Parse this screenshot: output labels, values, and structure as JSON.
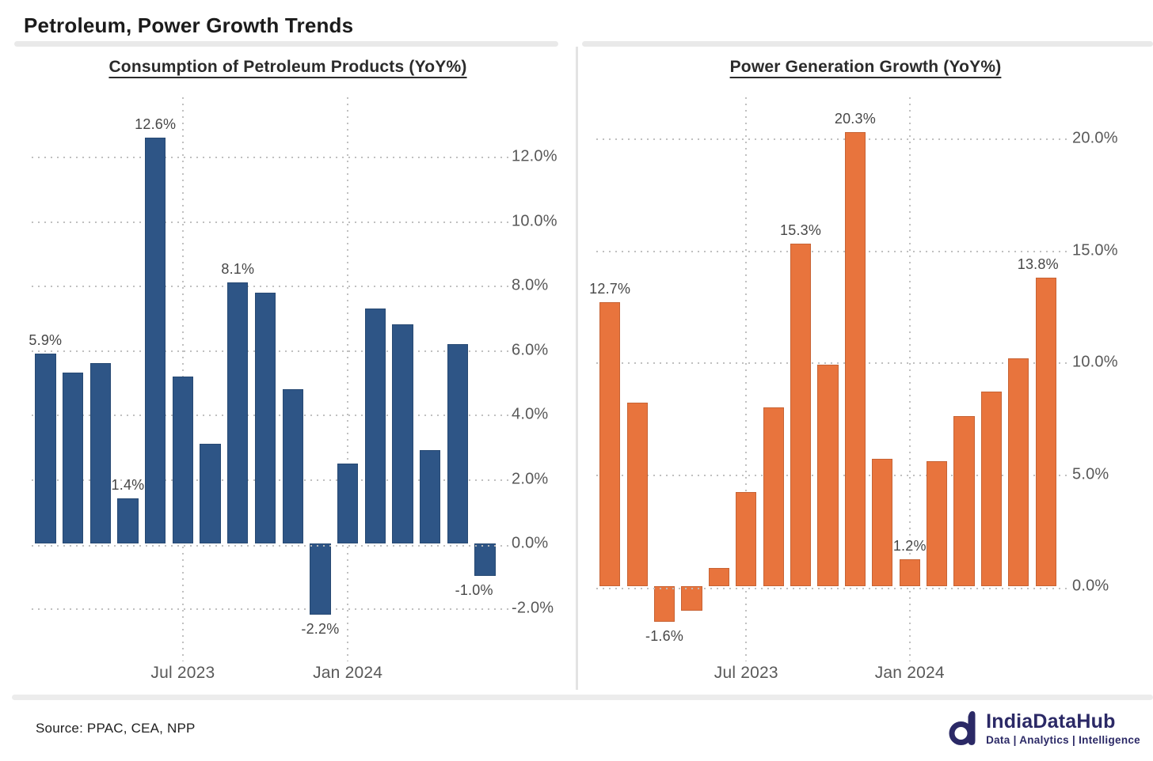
{
  "page": {
    "title": "Petroleum, Power Growth Trends",
    "source": "Source: PPAC, CEA, NPP",
    "logo": {
      "name": "IndiaDataHub",
      "tagline": "Data | Analytics | Intelligence"
    }
  },
  "chart_data": [
    {
      "type": "bar",
      "title": "Consumption of Petroleum Products (YoY%)",
      "bar_color": "#2E5586",
      "grid": "dotted",
      "legend": "none",
      "values": [
        5.9,
        5.3,
        5.6,
        1.4,
        12.6,
        5.2,
        3.1,
        8.1,
        7.8,
        4.8,
        -2.2,
        2.5,
        7.3,
        6.8,
        2.9,
        6.2,
        -1.0
      ],
      "bar_labels": [
        {
          "index": 0,
          "text": "5.9%"
        },
        {
          "index": 3,
          "text": "1.4%"
        },
        {
          "index": 4,
          "text": "12.6%"
        },
        {
          "index": 7,
          "text": "8.1%"
        },
        {
          "index": 10,
          "text": "-2.2%"
        },
        {
          "index": 16,
          "text": "-1.0%",
          "dx": -14
        }
      ],
      "y_ticks": [
        {
          "v": 12,
          "label": "12.0%"
        },
        {
          "v": 10,
          "label": "10.0%"
        },
        {
          "v": 8,
          "label": "8.0%"
        },
        {
          "v": 6,
          "label": "6.0%"
        },
        {
          "v": 4,
          "label": "4.0%"
        },
        {
          "v": 2,
          "label": "2.0%"
        },
        {
          "v": 0,
          "label": "0.0%"
        },
        {
          "v": -2,
          "label": "-2.0%"
        }
      ],
      "x_ticks": [
        {
          "index": 5,
          "label": "Jul 2023"
        },
        {
          "index": 11,
          "label": "Jan 2024"
        }
      ],
      "ylim": [
        -3.4,
        13.85
      ]
    },
    {
      "type": "bar",
      "title": "Power Generation Growth (YoY%)",
      "bar_color": "#E8743D",
      "grid": "dotted",
      "legend": "none",
      "values": [
        12.7,
        8.2,
        -1.6,
        -1.1,
        0.8,
        4.2,
        8.0,
        15.3,
        9.9,
        20.3,
        5.7,
        1.2,
        5.6,
        7.6,
        8.7,
        10.2,
        13.8
      ],
      "bar_labels": [
        {
          "index": 0,
          "text": "12.7%"
        },
        {
          "index": 2,
          "text": "-1.6%"
        },
        {
          "index": 7,
          "text": "15.3%"
        },
        {
          "index": 9,
          "text": "20.3%"
        },
        {
          "index": 11,
          "text": "1.2%"
        },
        {
          "index": 16,
          "text": "13.8%",
          "dx": -10
        }
      ],
      "y_ticks": [
        {
          "v": 20,
          "label": "20.0%"
        },
        {
          "v": 15,
          "label": "15.0%"
        },
        {
          "v": 10,
          "label": "10.0%"
        },
        {
          "v": 5,
          "label": "5.0%"
        },
        {
          "v": 0,
          "label": "0.0%"
        }
      ],
      "x_ticks": [
        {
          "index": 5,
          "label": "Jul 2023"
        },
        {
          "index": 11,
          "label": "Jan 2024"
        }
      ],
      "ylim": [
        -3.0,
        21.85
      ]
    }
  ]
}
